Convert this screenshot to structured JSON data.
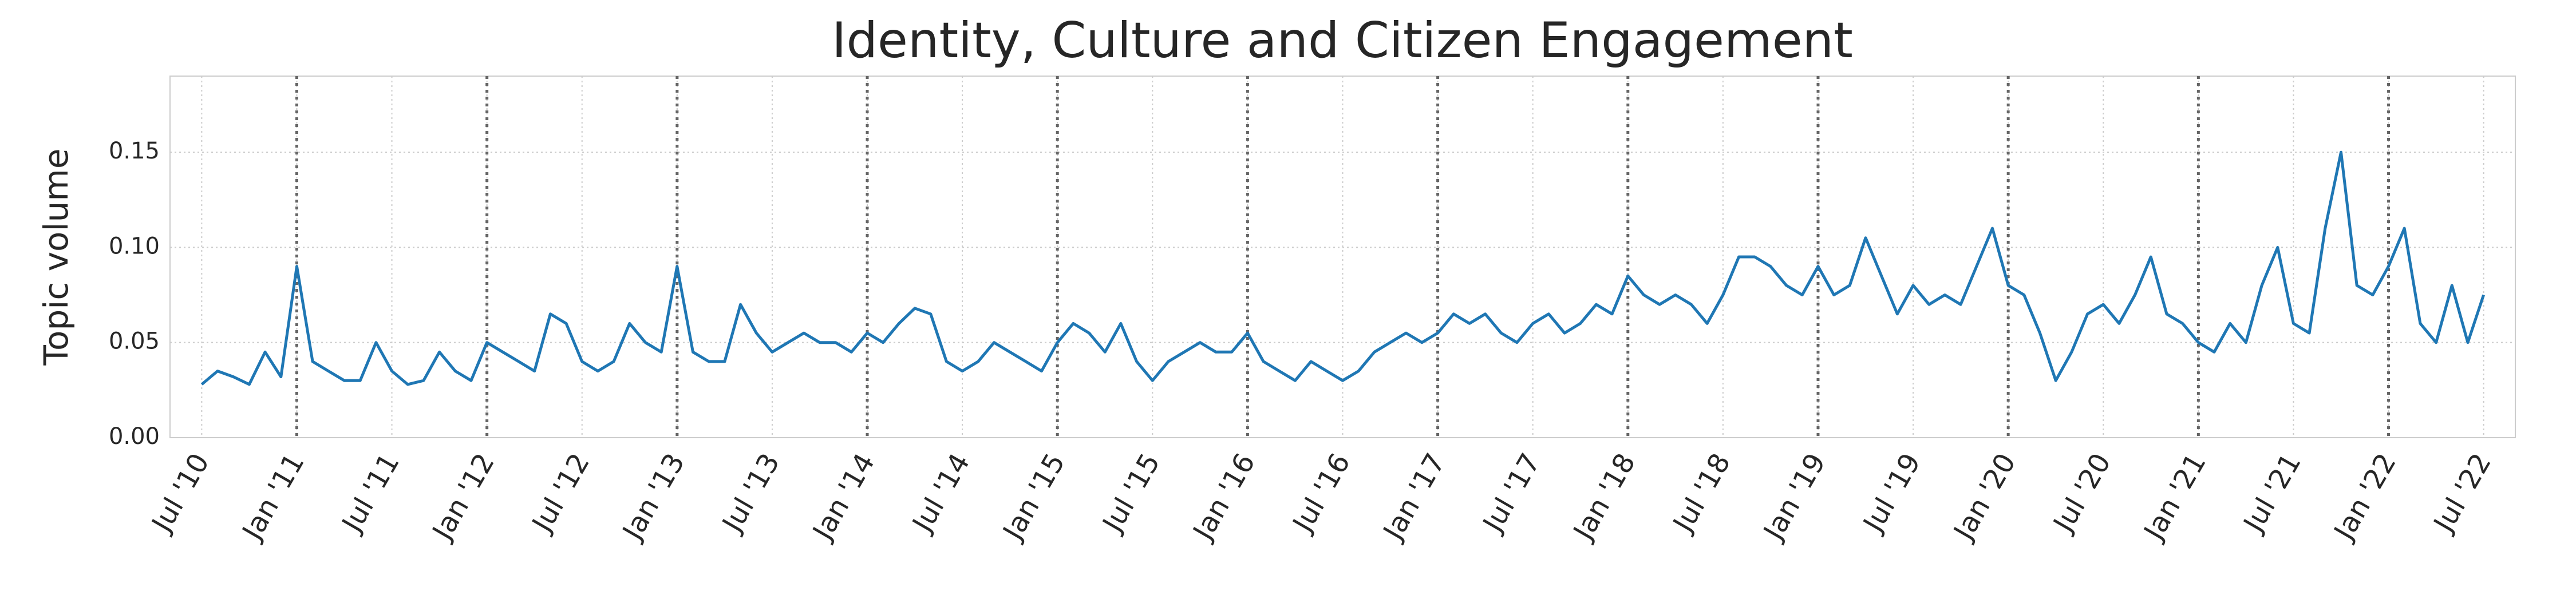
{
  "chart_data": {
    "type": "line",
    "title": "Identity, Culture and Citizen Engagement",
    "y_label": "Topic volume",
    "x": [
      "2010-07",
      "2010-08",
      "2010-09",
      "2010-10",
      "2010-11",
      "2010-12",
      "2011-01",
      "2011-02",
      "2011-03",
      "2011-04",
      "2011-05",
      "2011-06",
      "2011-07",
      "2011-08",
      "2011-09",
      "2011-10",
      "2011-11",
      "2011-12",
      "2012-01",
      "2012-02",
      "2012-03",
      "2012-04",
      "2012-05",
      "2012-06",
      "2012-07",
      "2012-08",
      "2012-09",
      "2012-10",
      "2012-11",
      "2012-12",
      "2013-01",
      "2013-02",
      "2013-03",
      "2013-04",
      "2013-05",
      "2013-06",
      "2013-07",
      "2013-08",
      "2013-09",
      "2013-10",
      "2013-11",
      "2013-12",
      "2014-01",
      "2014-02",
      "2014-03",
      "2014-04",
      "2014-05",
      "2014-06",
      "2014-07",
      "2014-08",
      "2014-09",
      "2014-10",
      "2014-11",
      "2014-12",
      "2015-01",
      "2015-02",
      "2015-03",
      "2015-04",
      "2015-05",
      "2015-06",
      "2015-07",
      "2015-08",
      "2015-09",
      "2015-10",
      "2015-11",
      "2015-12",
      "2016-01",
      "2016-02",
      "2016-03",
      "2016-04",
      "2016-05",
      "2016-06",
      "2016-07",
      "2016-08",
      "2016-09",
      "2016-10",
      "2016-11",
      "2016-12",
      "2017-01",
      "2017-02",
      "2017-03",
      "2017-04",
      "2017-05",
      "2017-06",
      "2017-07",
      "2017-08",
      "2017-09",
      "2017-10",
      "2017-11",
      "2017-12",
      "2018-01",
      "2018-02",
      "2018-03",
      "2018-04",
      "2018-05",
      "2018-06",
      "2018-07",
      "2018-08",
      "2018-09",
      "2018-10",
      "2018-11",
      "2018-12",
      "2019-01",
      "2019-02",
      "2019-03",
      "2019-04",
      "2019-05",
      "2019-06",
      "2019-07",
      "2019-08",
      "2019-09",
      "2019-10",
      "2019-11",
      "2019-12",
      "2020-01",
      "2020-02",
      "2020-03",
      "2020-04",
      "2020-05",
      "2020-06",
      "2020-07",
      "2020-08",
      "2020-09",
      "2020-10",
      "2020-11",
      "2020-12",
      "2021-01",
      "2021-02",
      "2021-03",
      "2021-04",
      "2021-05",
      "2021-06",
      "2021-07",
      "2021-08",
      "2021-09",
      "2021-10",
      "2021-11",
      "2021-12",
      "2022-01",
      "2022-02",
      "2022-03",
      "2022-04",
      "2022-05",
      "2022-06",
      "2022-07"
    ],
    "series": [
      {
        "color": "#1f77b4",
        "values": [
          0.028,
          0.035,
          0.032,
          0.028,
          0.045,
          0.032,
          0.09,
          0.04,
          0.035,
          0.03,
          0.03,
          0.05,
          0.035,
          0.028,
          0.03,
          0.045,
          0.035,
          0.03,
          0.05,
          0.045,
          0.04,
          0.035,
          0.065,
          0.06,
          0.04,
          0.035,
          0.04,
          0.06,
          0.05,
          0.045,
          0.09,
          0.045,
          0.04,
          0.04,
          0.07,
          0.055,
          0.045,
          0.05,
          0.055,
          0.05,
          0.05,
          0.045,
          0.055,
          0.05,
          0.06,
          0.068,
          0.065,
          0.04,
          0.035,
          0.04,
          0.05,
          0.045,
          0.04,
          0.035,
          0.05,
          0.06,
          0.055,
          0.045,
          0.06,
          0.04,
          0.03,
          0.04,
          0.045,
          0.05,
          0.045,
          0.045,
          0.055,
          0.04,
          0.035,
          0.03,
          0.04,
          0.035,
          0.03,
          0.035,
          0.045,
          0.05,
          0.055,
          0.05,
          0.055,
          0.065,
          0.06,
          0.065,
          0.055,
          0.05,
          0.06,
          0.065,
          0.055,
          0.06,
          0.07,
          0.065,
          0.085,
          0.075,
          0.07,
          0.075,
          0.07,
          0.06,
          0.075,
          0.095,
          0.095,
          0.09,
          0.08,
          0.075,
          0.09,
          0.075,
          0.08,
          0.105,
          0.085,
          0.065,
          0.08,
          0.07,
          0.075,
          0.07,
          0.09,
          0.11,
          0.08,
          0.075,
          0.055,
          0.03,
          0.045,
          0.065,
          0.07,
          0.06,
          0.075,
          0.095,
          0.065,
          0.06,
          0.05,
          0.045,
          0.06,
          0.05,
          0.08,
          0.1,
          0.06,
          0.055,
          0.11,
          0.15,
          0.08,
          0.075,
          0.09,
          0.11,
          0.06,
          0.05,
          0.08,
          0.05,
          0.075
        ]
      }
    ],
    "vlines": [
      "2011-01",
      "2012-01",
      "2013-01",
      "2014-01",
      "2015-01",
      "2016-01",
      "2017-01",
      "2018-01",
      "2019-01",
      "2020-01",
      "2021-01",
      "2022-01"
    ],
    "xlim": [
      "2010-05",
      "2022-09"
    ],
    "xticks": [
      {
        "value": "2010-07",
        "label": "Jul '10"
      },
      {
        "value": "2011-01",
        "label": "Jan '11"
      },
      {
        "value": "2011-07",
        "label": "Jul '11"
      },
      {
        "value": "2012-01",
        "label": "Jan '12"
      },
      {
        "value": "2012-07",
        "label": "Jul '12"
      },
      {
        "value": "2013-01",
        "label": "Jan '13"
      },
      {
        "value": "2013-07",
        "label": "Jul '13"
      },
      {
        "value": "2014-01",
        "label": "Jan '14"
      },
      {
        "value": "2014-07",
        "label": "Jul '14"
      },
      {
        "value": "2015-01",
        "label": "Jan '15"
      },
      {
        "value": "2015-07",
        "label": "Jul '15"
      },
      {
        "value": "2016-01",
        "label": "Jan '16"
      },
      {
        "value": "2016-07",
        "label": "Jul '16"
      },
      {
        "value": "2017-01",
        "label": "Jan '17"
      },
      {
        "value": "2017-07",
        "label": "Jul '17"
      },
      {
        "value": "2018-01",
        "label": "Jan '18"
      },
      {
        "value": "2018-07",
        "label": "Jul '18"
      },
      {
        "value": "2019-01",
        "label": "Jan '19"
      },
      {
        "value": "2019-07",
        "label": "Jul '19"
      },
      {
        "value": "2020-01",
        "label": "Jan '20"
      },
      {
        "value": "2020-07",
        "label": "Jul '20"
      },
      {
        "value": "2021-01",
        "label": "Jan '21"
      },
      {
        "value": "2021-07",
        "label": "Jul '21"
      },
      {
        "value": "2022-01",
        "label": "Jan '22"
      },
      {
        "value": "2022-07",
        "label": "Jul '22"
      }
    ],
    "ylim": [
      0,
      0.19
    ],
    "yticks": [
      {
        "value": 0,
        "label": "0.00"
      },
      {
        "value": 0.05,
        "label": "0.05"
      },
      {
        "value": 0.1,
        "label": "0.10"
      },
      {
        "value": 0.15,
        "label": "0.15"
      }
    ],
    "grid": true
  }
}
